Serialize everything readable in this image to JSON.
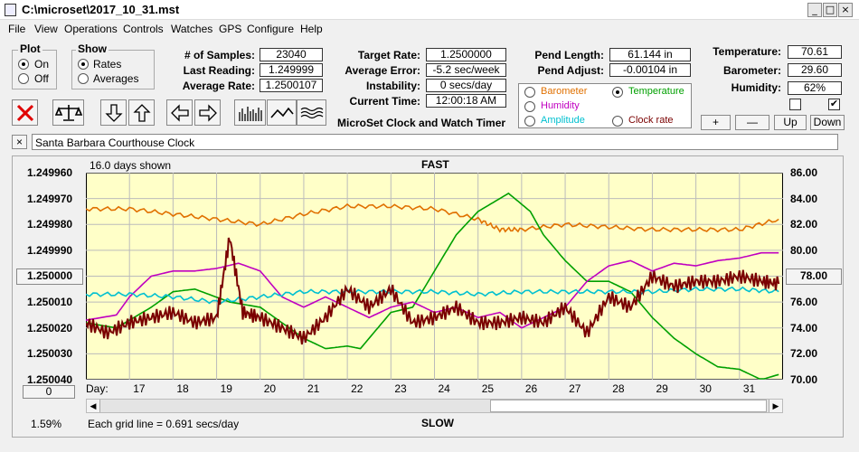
{
  "window": {
    "title": "C:\\microset\\2017_10_31.mst",
    "minimize": "_",
    "maximize": "□",
    "close": "×"
  },
  "menu": [
    "File",
    "View",
    "Operations",
    "Controls",
    "Watches",
    "GPS",
    "Configure",
    "Help"
  ],
  "plot": {
    "label": "Plot",
    "on": "On",
    "off": "Off",
    "selected": "On"
  },
  "show": {
    "label": "Show",
    "rates": "Rates",
    "averages": "Averages",
    "selected": "Rates"
  },
  "stats": [
    {
      "label": "# of Samples:",
      "value": "23040"
    },
    {
      "label": "Last Reading:",
      "value": "1.249999"
    },
    {
      "label": "Average Rate:",
      "value": "1.2500107"
    }
  ],
  "rates": [
    {
      "label": "Target Rate:",
      "value": "1.2500000"
    },
    {
      "label": "Average Error:",
      "value": "-5.2 sec/week"
    },
    {
      "label": "Instability:",
      "value": "0 secs/day"
    },
    {
      "label": "Current Time:",
      "value": "12:00:18 AM"
    }
  ],
  "pend": [
    {
      "label": "Pend Length:",
      "value": "61.144 in"
    },
    {
      "label": "Pend Adjust:",
      "value": "-0.00104 in"
    }
  ],
  "env": [
    {
      "label": "Temperature:",
      "value": "70.61"
    },
    {
      "label": "Barometer:",
      "value": "29.60"
    },
    {
      "label": "Humidity:",
      "value": "62%"
    }
  ],
  "app_caption": "MicroSet Clock and Watch Timer",
  "sensors": {
    "options": [
      {
        "name": "Barometer",
        "color": "#e07000"
      },
      {
        "name": "Temperature",
        "color": "#00a000"
      },
      {
        "name": "Humidity",
        "color": "#c000c0"
      },
      {
        "name": "Amplitude",
        "color": "#00c0d0"
      },
      {
        "name": "Clock rate",
        "color": "#7a0000"
      }
    ],
    "selected": "Temperature"
  },
  "adjust_buttons": {
    "plus": "+",
    "minus": "—",
    "up": "Up",
    "down": "Down"
  },
  "checkboxes": [
    {
      "checked": false
    },
    {
      "checked": true,
      "mark": "✔"
    }
  ],
  "clock_name": "Santa Barbara Courthouse Clock",
  "clear_button": "×",
  "graph": {
    "days_shown": "16.0 days shown",
    "top_label": "FAST",
    "bottom_label": "SLOW",
    "left_button": "1.250000",
    "right_button": "78.00",
    "bottom_left_button": "0",
    "percent": "1.59%",
    "grid_note": "Each grid line = 0.691 secs/day",
    "day_label": "Day:"
  },
  "chart_data": {
    "type": "line",
    "x_range": [
      16.0,
      32.0
    ],
    "x_ticks": [
      "17",
      "18",
      "19",
      "20",
      "21",
      "22",
      "23",
      "24",
      "25",
      "26",
      "27",
      "28",
      "29",
      "30",
      "31"
    ],
    "y_left_ticks": [
      "1.249960",
      "1.249970",
      "1.249980",
      "1.249990",
      "1.250000",
      "1.250010",
      "1.250020",
      "1.250030",
      "1.250040"
    ],
    "y_left_range": [
      1.24996,
      1.25004
    ],
    "y_right_ticks": [
      "86.00",
      "84.00",
      "82.00",
      "80.00",
      "78.00",
      "76.00",
      "74.00",
      "72.00",
      "70.00"
    ],
    "y_right_range": [
      70,
      86
    ],
    "grid": true,
    "series": [
      {
        "name": "Barometer",
        "color": "#e07000",
        "x": [
          16,
          17,
          18,
          19,
          20,
          21,
          22,
          23,
          24,
          25,
          25.5,
          26,
          27,
          28,
          29,
          30,
          31,
          31.9
        ],
        "y": [
          1.249974,
          1.249974,
          1.249976,
          1.249978,
          1.24998,
          1.249976,
          1.249973,
          1.249973,
          1.249974,
          1.249978,
          1.249982,
          1.249982,
          1.24998,
          1.249981,
          1.249982,
          1.249982,
          1.249982,
          1.249978
        ]
      },
      {
        "name": "Temperature",
        "color": "#00a000",
        "x": [
          16,
          16.7,
          17.5,
          18,
          18.5,
          19.3,
          20,
          20.5,
          21,
          21.5,
          22,
          22.3,
          23,
          23.5,
          24,
          24.5,
          25,
          25.7,
          26.2,
          26.5,
          27,
          27.5,
          28,
          28.5,
          29,
          29.5,
          30,
          30.5,
          31,
          31.5,
          31.9
        ],
        "y": [
          1.250018,
          1.25002,
          1.250012,
          1.250006,
          1.250005,
          1.25001,
          1.250012,
          1.250018,
          1.250024,
          1.250028,
          1.250027,
          1.250028,
          1.250014,
          1.250012,
          1.249998,
          1.249984,
          1.249975,
          1.249968,
          1.249975,
          1.249984,
          1.249994,
          1.250002,
          1.250002,
          1.250006,
          1.250016,
          1.250024,
          1.25003,
          1.250035,
          1.250036,
          1.25004,
          1.250038
        ]
      },
      {
        "name": "Humidity",
        "color": "#c000c0",
        "x": [
          16,
          16.7,
          17,
          17.5,
          18,
          18.5,
          19,
          19.5,
          20,
          20.5,
          21,
          21.5,
          22,
          22.5,
          23,
          23.5,
          24,
          24.5,
          25,
          25.5,
          26,
          26.5,
          27,
          27.5,
          28,
          28.5,
          29,
          29.5,
          30,
          30.5,
          31,
          31.5,
          31.9
        ],
        "y": [
          1.250017,
          1.250015,
          1.250008,
          1.25,
          1.249998,
          1.249998,
          1.249997,
          1.249995,
          1.249998,
          1.250008,
          1.250012,
          1.250008,
          1.250012,
          1.250016,
          1.250012,
          1.25001,
          1.250014,
          1.250012,
          1.250016,
          1.250014,
          1.25002,
          1.250016,
          1.250012,
          1.250002,
          1.249996,
          1.249994,
          1.249998,
          1.249995,
          1.249996,
          1.249994,
          1.249993,
          1.249991,
          1.249991
        ]
      },
      {
        "name": "Amplitude",
        "color": "#00c0d0",
        "x": [
          16,
          17,
          18,
          19,
          20,
          21,
          22,
          23,
          24,
          25,
          26,
          27,
          28,
          29,
          30,
          31,
          31.9
        ],
        "y": [
          1.250007,
          1.250007,
          1.250008,
          1.25001,
          1.250008,
          1.250006,
          1.250006,
          1.250006,
          1.250006,
          1.250007,
          1.250006,
          1.250006,
          1.250006,
          1.250006,
          1.250005,
          1.250005,
          1.250006
        ]
      },
      {
        "name": "Clock rate",
        "color": "#7a0000",
        "x": [
          16,
          16.5,
          17,
          17.5,
          18,
          18.5,
          19,
          19.3,
          19.6,
          20,
          20.5,
          21,
          21.5,
          22,
          22.5,
          23,
          23.5,
          24,
          24.5,
          25,
          25.5,
          26,
          26.5,
          27,
          27.5,
          28,
          28.5,
          29,
          29.5,
          30,
          30.5,
          31,
          31.5,
          31.9
        ],
        "y": [
          1.250018,
          1.250022,
          1.250018,
          1.250016,
          1.250014,
          1.250018,
          1.250016,
          1.249985,
          1.250014,
          1.250016,
          1.25002,
          1.250024,
          1.250016,
          1.250005,
          1.250012,
          1.250005,
          1.250018,
          1.250016,
          1.250012,
          1.250018,
          1.250018,
          1.250016,
          1.250018,
          1.250012,
          1.250022,
          1.250008,
          1.250012,
          1.25,
          1.250004,
          1.250002,
          1.250002,
          1.25,
          1.250002,
          1.250003
        ]
      }
    ]
  }
}
